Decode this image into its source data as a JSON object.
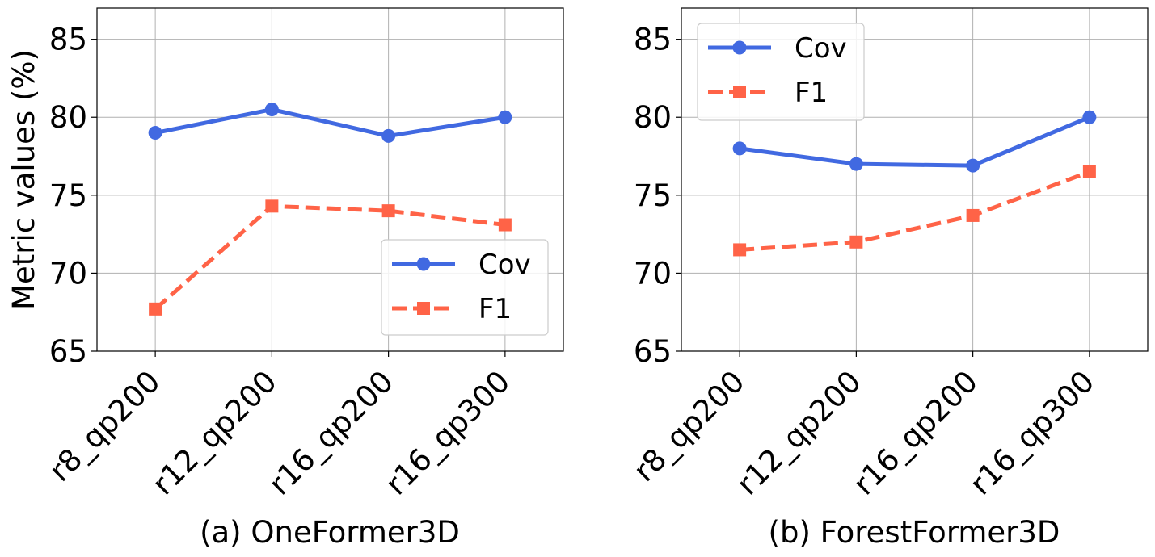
{
  "chart_data": [
    {
      "type": "line",
      "title": "(a) OneFormer3D",
      "categories": [
        "r8_qp200",
        "r12_qp200",
        "r16_qp200",
        "r16_qp300"
      ],
      "ylabel": "Metric values (%)",
      "xlabel": "",
      "ylim": [
        65,
        87
      ],
      "yticks": [
        65,
        70,
        75,
        80,
        85
      ],
      "grid": true,
      "legend_position": "lower-right",
      "series": [
        {
          "name": "Cov",
          "values": [
            79.0,
            80.5,
            78.8,
            80.0
          ],
          "color": "#4169E1",
          "marker": "circle",
          "linestyle": "solid"
        },
        {
          "name": "F1",
          "values": [
            67.7,
            74.3,
            74.0,
            73.1
          ],
          "color": "#FF6347",
          "marker": "square",
          "linestyle": "dashed"
        }
      ]
    },
    {
      "type": "line",
      "title": "(b) ForestFormer3D",
      "categories": [
        "r8_qp200",
        "r12_qp200",
        "r16_qp200",
        "r16_qp300"
      ],
      "ylabel": "",
      "xlabel": "",
      "ylim": [
        65,
        87
      ],
      "yticks": [
        65,
        70,
        75,
        80,
        85
      ],
      "grid": true,
      "legend_position": "upper-left",
      "series": [
        {
          "name": "Cov",
          "values": [
            78.0,
            77.0,
            76.9,
            80.0
          ],
          "color": "#4169E1",
          "marker": "circle",
          "linestyle": "solid"
        },
        {
          "name": "F1",
          "values": [
            71.5,
            72.0,
            73.7,
            76.5
          ],
          "color": "#FF6347",
          "marker": "square",
          "linestyle": "dashed"
        }
      ]
    }
  ]
}
